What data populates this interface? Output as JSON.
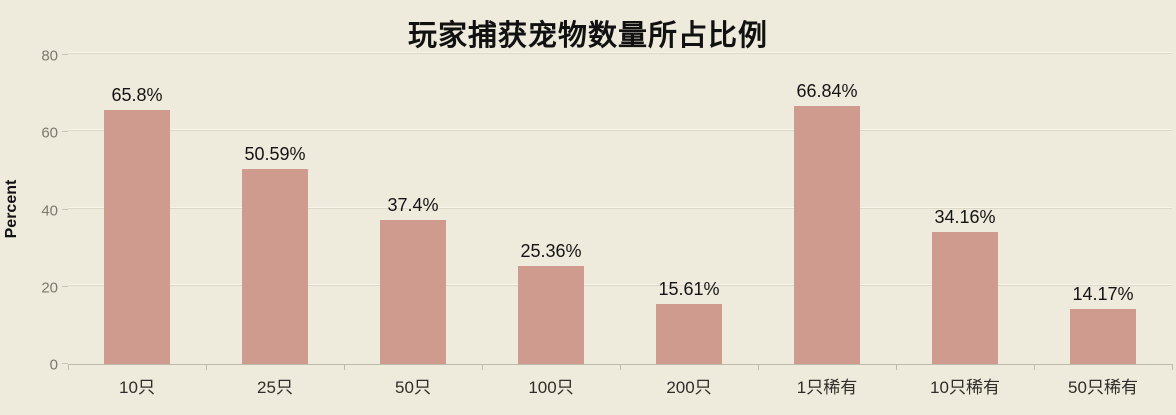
{
  "chart_data": {
    "type": "bar",
    "title": "玩家捕获宠物数量所占比例",
    "xlabel": "",
    "ylabel": "Percent",
    "categories": [
      "10只",
      "25只",
      "50只",
      "100只",
      "200只",
      "1只稀有",
      "10只稀有",
      "50只稀有"
    ],
    "values": [
      65.8,
      50.59,
      37.4,
      25.36,
      15.61,
      66.84,
      34.16,
      14.17
    ],
    "value_labels": [
      "65.8%",
      "50.59%",
      "37.4%",
      "25.36%",
      "15.61%",
      "66.84%",
      "34.16%",
      "14.17%"
    ],
    "ylim": [
      0,
      80
    ],
    "yticks": [
      0,
      20,
      40,
      60,
      80
    ],
    "grid": true,
    "legend": "none",
    "colors": {
      "background": "#eeebdc",
      "bar": "#d09b8f",
      "gridline": "#dbd8c7",
      "gridline_highlight": "#f7f5ea",
      "axis_line": "#bdbbac",
      "y_tick_text": "#7b796d",
      "x_tick_text": "#2e2d29",
      "title_text": "#111111"
    }
  }
}
